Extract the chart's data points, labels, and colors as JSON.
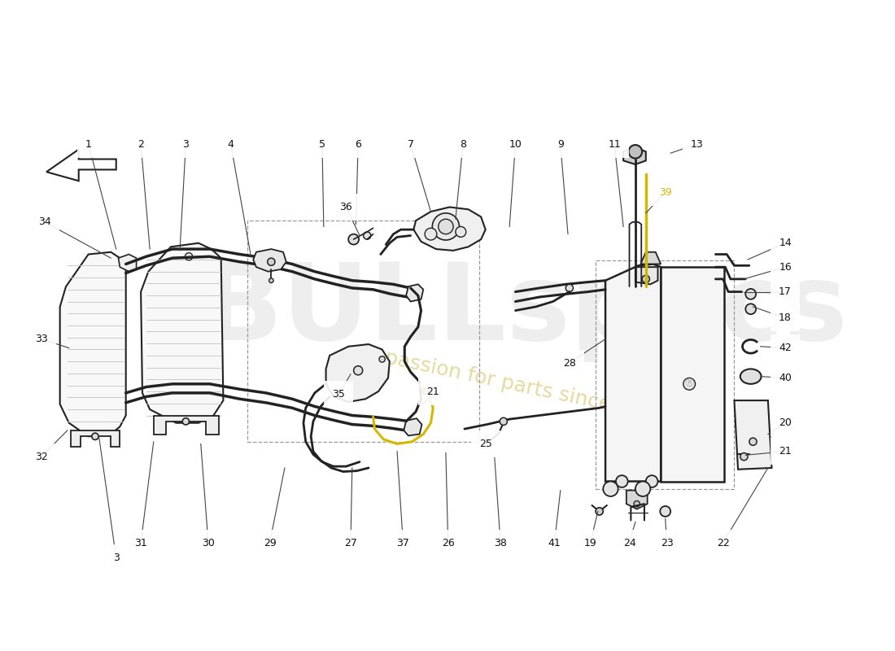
{
  "bg": "#ffffff",
  "lc": "#222222",
  "lc_light": "#888888",
  "hl": "#d4b800",
  "wm1": "#c8c8c8",
  "wm2": "#d4c060",
  "labels_top": [
    [
      "1",
      118,
      158
    ],
    [
      "2",
      188,
      158
    ],
    [
      "3",
      248,
      158
    ],
    [
      "4",
      308,
      158
    ],
    [
      "5",
      430,
      158
    ],
    [
      "6",
      478,
      158
    ],
    [
      "7",
      548,
      158
    ],
    [
      "8",
      618,
      158
    ],
    [
      "10",
      688,
      158
    ],
    [
      "9",
      748,
      158
    ],
    [
      "11",
      820,
      158
    ],
    [
      "13",
      930,
      158
    ]
  ],
  "labels_left": [
    [
      "34",
      60,
      262
    ],
    [
      "36",
      462,
      242
    ],
    [
      "33",
      55,
      418
    ],
    [
      "32",
      55,
      575
    ],
    [
      "28",
      760,
      450
    ]
  ],
  "labels_right": [
    [
      "14",
      1048,
      290
    ],
    [
      "16",
      1048,
      322
    ],
    [
      "17",
      1048,
      355
    ],
    [
      "18",
      1048,
      390
    ],
    [
      "42",
      1048,
      430
    ],
    [
      "40",
      1048,
      470
    ],
    [
      "20",
      1048,
      530
    ],
    [
      "21",
      1048,
      568
    ]
  ],
  "labels_right2": [
    [
      "39",
      888,
      222
    ]
  ],
  "labels_mid": [
    [
      "35",
      452,
      492
    ],
    [
      "21",
      578,
      488
    ],
    [
      "25",
      648,
      558
    ]
  ],
  "labels_bottom": [
    [
      "31",
      188,
      690
    ],
    [
      "3",
      155,
      710
    ],
    [
      "30",
      278,
      690
    ],
    [
      "29",
      360,
      690
    ],
    [
      "27",
      468,
      690
    ],
    [
      "37",
      538,
      690
    ],
    [
      "26",
      598,
      690
    ],
    [
      "38",
      668,
      690
    ],
    [
      "41",
      740,
      690
    ],
    [
      "19",
      788,
      690
    ],
    [
      "24",
      840,
      690
    ],
    [
      "23",
      890,
      690
    ],
    [
      "22",
      965,
      690
    ]
  ]
}
